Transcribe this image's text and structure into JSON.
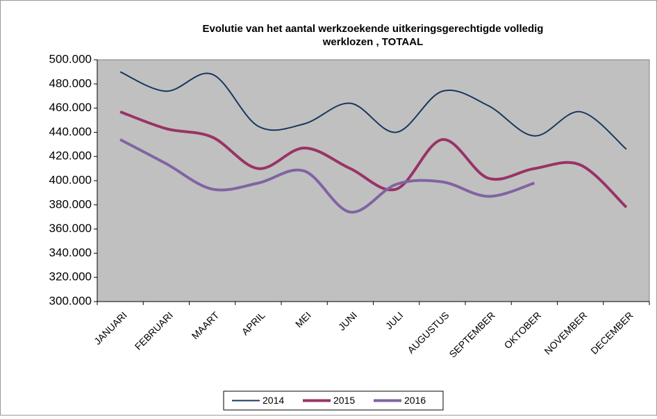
{
  "chart_data": {
    "type": "line",
    "title": [
      "Evolutie van het aantal werkzoekende uitkeringsgerechtigde volledig",
      "werklozen , TOTAAL"
    ],
    "categories": [
      "JANUARI",
      "FEBRUARI",
      "MAART",
      "APRIL",
      "MEI",
      "JUNI",
      "JULI",
      "AUGUSTUS",
      "SEPTEMBER",
      "OKTOBER",
      "NOVEMBER",
      "DECEMBER"
    ],
    "series": [
      {
        "name": "2014",
        "color": "#17375e",
        "values": [
          490000,
          474000,
          488000,
          445000,
          447000,
          464000,
          440000,
          474000,
          462000,
          437000,
          457000,
          426000
        ]
      },
      {
        "name": "2015",
        "color": "#993366",
        "values": [
          457000,
          443000,
          436000,
          410000,
          427000,
          410000,
          393000,
          434000,
          402000,
          410000,
          413000,
          378000
        ]
      },
      {
        "name": "2016",
        "color": "#8064a2",
        "values": [
          434000,
          414000,
          393000,
          398000,
          408000,
          374000,
          397000,
          399000,
          387000,
          398000,
          null,
          null
        ]
      }
    ],
    "ylim": [
      300000,
      500000
    ],
    "yticks": [
      {
        "value": 300000,
        "label": "300.000"
      },
      {
        "value": 320000,
        "label": "320.000"
      },
      {
        "value": 340000,
        "label": "340.000"
      },
      {
        "value": 360000,
        "label": "360.000"
      },
      {
        "value": 380000,
        "label": "380.000"
      },
      {
        "value": 400000,
        "label": "400.000"
      },
      {
        "value": 420000,
        "label": "420.000"
      },
      {
        "value": 440000,
        "label": "440.000"
      },
      {
        "value": 460000,
        "label": "460.000"
      },
      {
        "value": 480000,
        "label": "480.000"
      },
      {
        "value": 500000,
        "label": "500.000"
      }
    ],
    "smooth": true,
    "plot_background": "#c0c0c0",
    "legend": "bottom"
  }
}
